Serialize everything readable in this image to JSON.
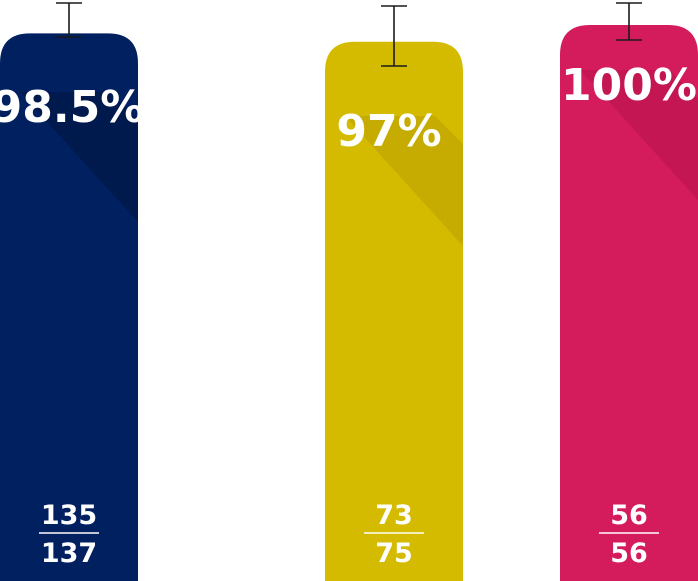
{
  "chart_data": {
    "type": "bar",
    "categories": [
      "",
      "",
      ""
    ],
    "values": [
      98.5,
      97,
      100
    ],
    "value_labels": [
      "98.5%",
      "97%",
      "100%"
    ],
    "numerators": [
      "135",
      "73",
      "56"
    ],
    "denominators": [
      "137",
      "75",
      "56"
    ],
    "error_bars": true,
    "colors": [
      "#002060",
      "#d4bb00",
      "#d41c5c"
    ],
    "grid": false,
    "legend": "none"
  }
}
